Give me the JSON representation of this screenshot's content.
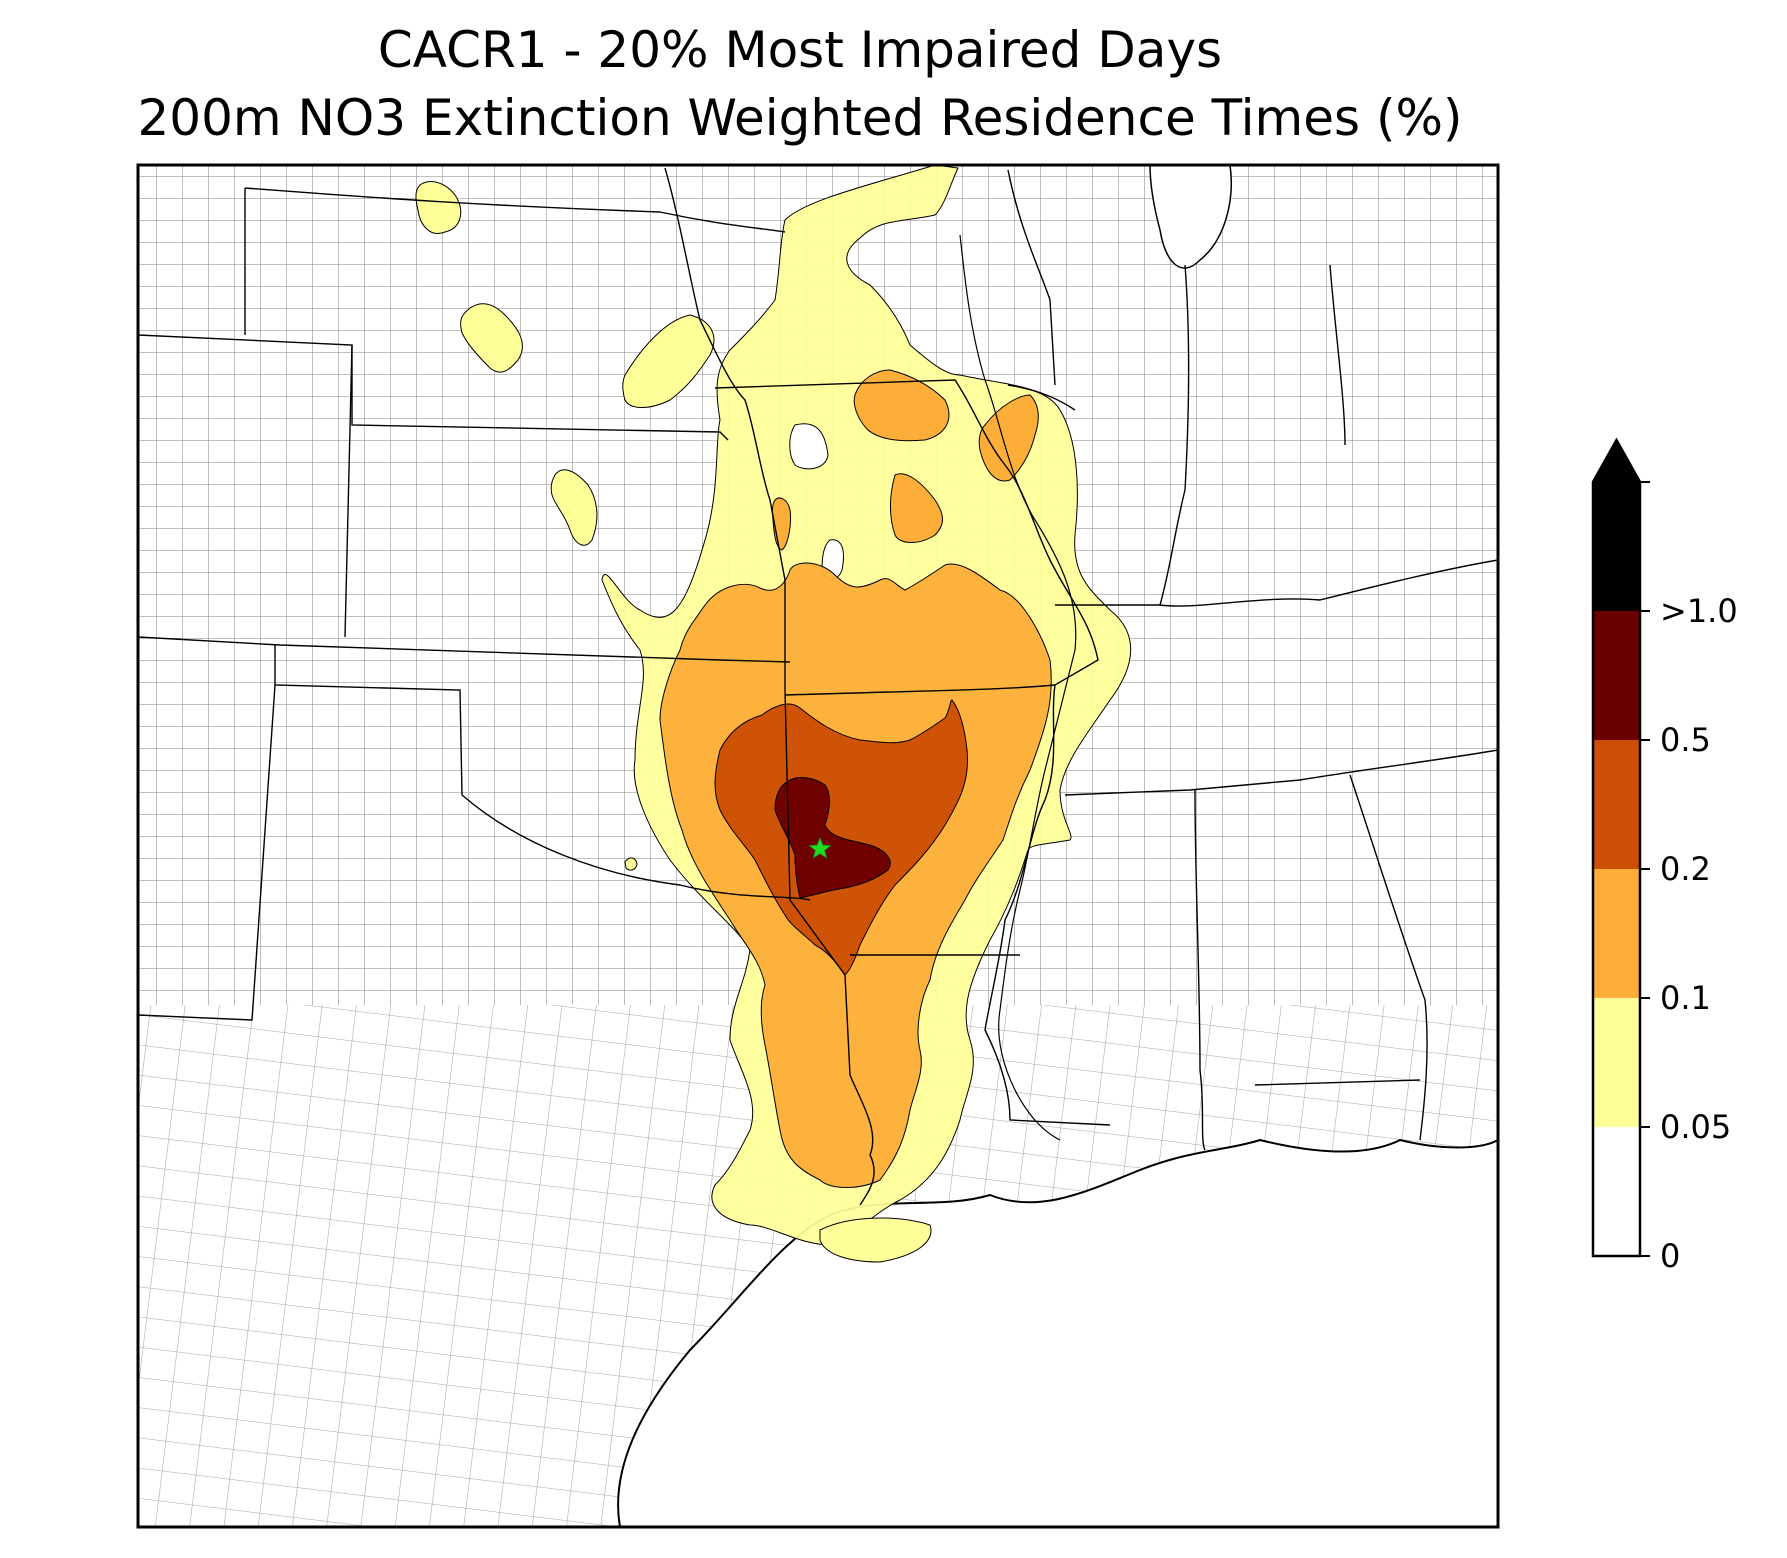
{
  "title": {
    "line1": "CACR1 - 20% Most Impaired Days",
    "line2": "200m NO3 Extinction Weighted Residence Times (%)"
  },
  "site": {
    "name": "CACR1",
    "marker": "star",
    "color": "#22dd22"
  },
  "colorbar": {
    "levels": [
      {
        "label": "0",
        "color": "#ffffff"
      },
      {
        "label": "0.05",
        "color": "#ffff99"
      },
      {
        "label": "0.1",
        "color": "#fdae38"
      },
      {
        "label": "0.2",
        "color": "#cc4f05"
      },
      {
        "label": "0.5",
        "color": "#6b0000"
      },
      {
        "label": ">1.0",
        "color": "#000000"
      }
    ],
    "extend": "max"
  },
  "colors": {
    "county_lines": "#9a9a9a",
    "state_lines": "#000000",
    "frame": "#000000"
  }
}
